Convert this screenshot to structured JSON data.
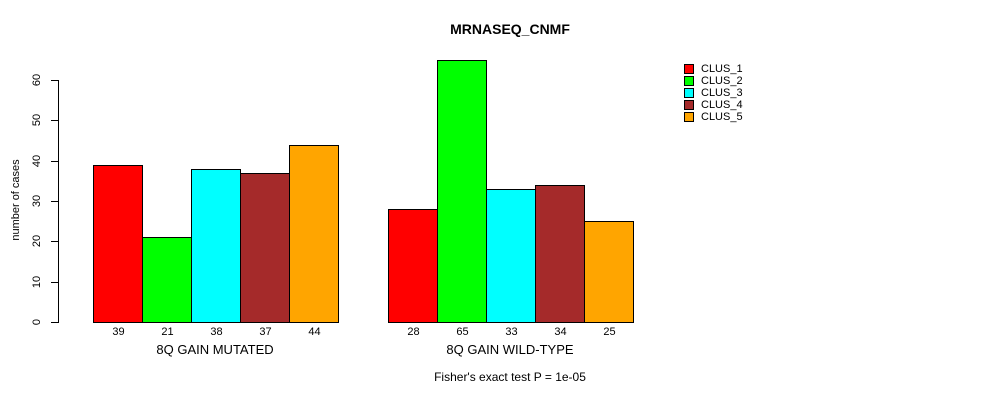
{
  "chart_data": {
    "type": "bar",
    "title": "MRNASEQ_CNMF",
    "ylabel": "number of cases",
    "xlabel": "",
    "ylim": [
      0,
      60
    ],
    "yticks": [
      0,
      10,
      20,
      30,
      40,
      50,
      60
    ],
    "grid": false,
    "legend_position": "right",
    "series": [
      {
        "name": "CLUS_1",
        "color": "#FF0000"
      },
      {
        "name": "CLUS_2",
        "color": "#00FF00"
      },
      {
        "name": "CLUS_3",
        "color": "#00FFFF"
      },
      {
        "name": "CLUS_4",
        "color": "#A52A2A"
      },
      {
        "name": "CLUS_5",
        "color": "#FFA500"
      }
    ],
    "groups": [
      {
        "label": "8Q GAIN MUTATED",
        "values": [
          39,
          21,
          38,
          37,
          44
        ]
      },
      {
        "label": "8Q GAIN WILD-TYPE",
        "values": [
          28,
          65,
          33,
          34,
          25
        ]
      }
    ],
    "caption": "Fisher's exact test P = 1e-05",
    "colors": {
      "background": "#FFFFFF",
      "axis": "#000000",
      "text": "#000000"
    }
  }
}
